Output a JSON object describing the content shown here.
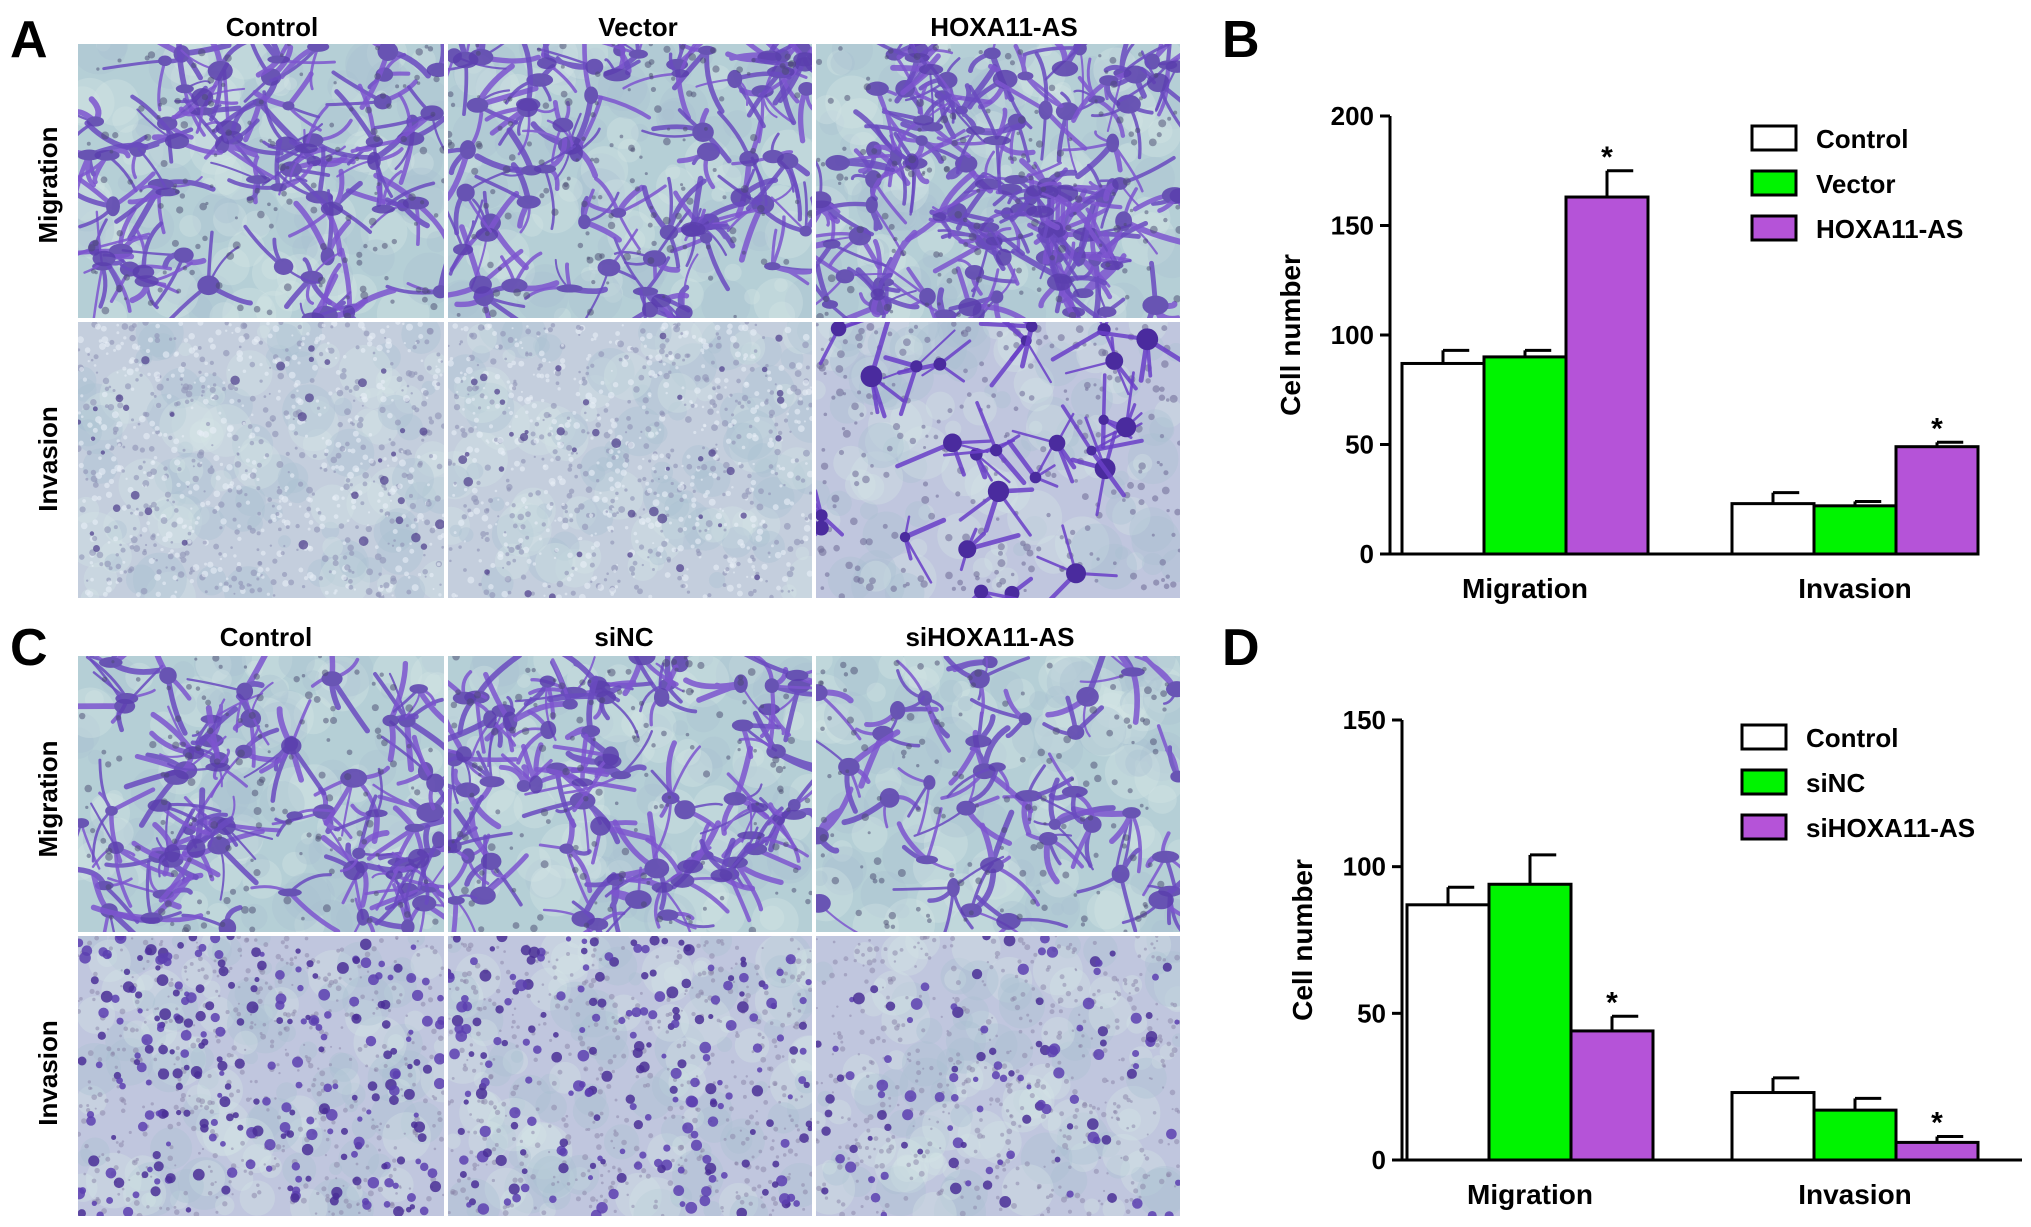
{
  "panels": {
    "A": {
      "letter": "A",
      "columns": [
        "Control",
        "Vector",
        "HOXA11-AS"
      ],
      "rows": [
        "Migration",
        "Invasion"
      ]
    },
    "C": {
      "letter": "C",
      "columns": [
        "Control",
        "siNC",
        "siHOXA11-AS"
      ],
      "rows": [
        "Migration",
        "Invasion"
      ]
    },
    "B": {
      "letter": "B"
    },
    "D": {
      "letter": "D"
    }
  },
  "colors": {
    "control": "#ffffff",
    "vector": "#00f400",
    "hoxa": "#b553d8",
    "stain_dark": "#5a3fb0",
    "background_field": "#b9d3da"
  },
  "chart_data": [
    {
      "id": "B",
      "type": "bar",
      "title": "",
      "xlabel": "",
      "ylabel": "Cell number",
      "ylim": [
        0,
        200
      ],
      "yticks": [
        0,
        50,
        100,
        150,
        200
      ],
      "categories": [
        "Migration",
        "Invasion"
      ],
      "legend_position": "top-right",
      "series": [
        {
          "name": "Control",
          "color": "#ffffff",
          "values": [
            87,
            23
          ],
          "errors": [
            6,
            5
          ],
          "significant": [
            false,
            false
          ]
        },
        {
          "name": "Vector",
          "color": "#00f400",
          "values": [
            90,
            22
          ],
          "errors": [
            3,
            2
          ],
          "significant": [
            false,
            false
          ]
        },
        {
          "name": "HOXA11-AS",
          "color": "#b553d8",
          "values": [
            163,
            49
          ],
          "errors": [
            12,
            2
          ],
          "significant": [
            true,
            true
          ]
        }
      ],
      "significance_marker": "*"
    },
    {
      "id": "D",
      "type": "bar",
      "title": "",
      "xlabel": "",
      "ylabel": "Cell number",
      "ylim": [
        0,
        150
      ],
      "yticks": [
        0,
        50,
        100,
        150
      ],
      "categories": [
        "Migration",
        "Invasion"
      ],
      "legend_position": "top-right",
      "series": [
        {
          "name": "Control",
          "color": "#ffffff",
          "values": [
            87,
            23
          ],
          "errors": [
            6,
            5
          ],
          "significant": [
            false,
            false
          ]
        },
        {
          "name": "siNC",
          "color": "#00f400",
          "values": [
            94,
            17
          ],
          "errors": [
            10,
            4
          ],
          "significant": [
            false,
            false
          ]
        },
        {
          "name": "siHOXA11-AS",
          "color": "#b553d8",
          "values": [
            44,
            6
          ],
          "errors": [
            5,
            2
          ],
          "significant": [
            true,
            true
          ]
        }
      ],
      "significance_marker": "*"
    }
  ]
}
